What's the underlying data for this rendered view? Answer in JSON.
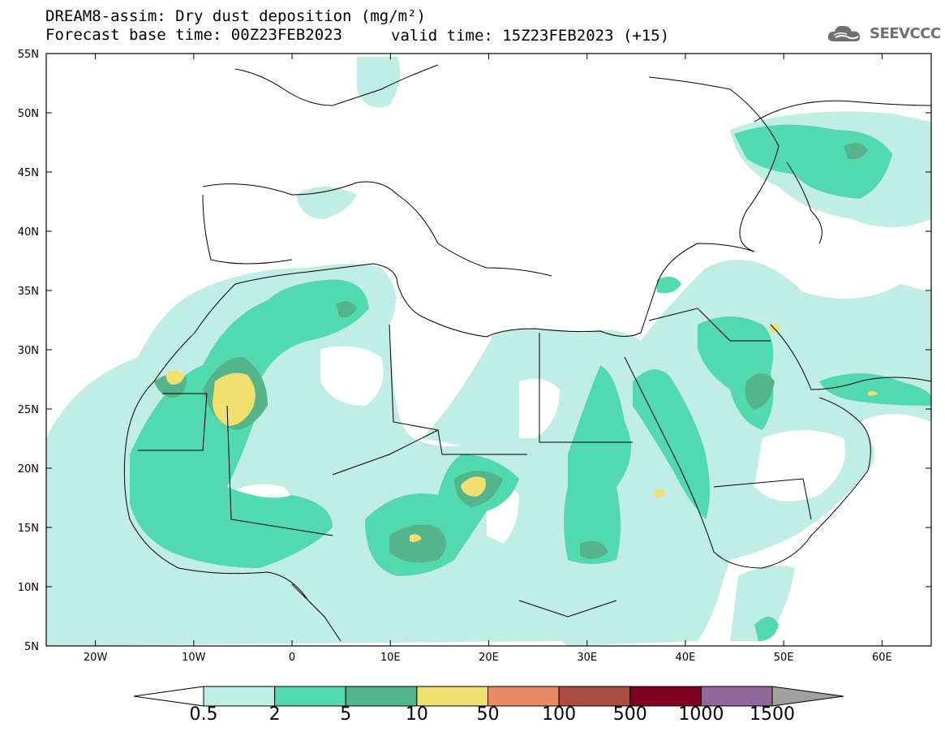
{
  "title": {
    "line1": "DREAM8-assim: Dry dust deposition (mg/m²)",
    "line2_left": "Forecast base time: 00Z23FEB2023",
    "line2_right": "valid time: 15Z23FEB2023 (+15)"
  },
  "logo": {
    "icon": "cloud-icon",
    "text": "SEEVCCC"
  },
  "axes": {
    "lat_labels": [
      "55N",
      "50N",
      "45N",
      "40N",
      "35N",
      "30N",
      "25N",
      "20N",
      "15N",
      "10N",
      "5N"
    ],
    "lon_labels": [
      "20W",
      "10W",
      "0",
      "10E",
      "20E",
      "30E",
      "40E",
      "50E",
      "60E"
    ]
  },
  "colorbar": {
    "labels": [
      "0.5",
      "2",
      "5",
      "10",
      "50",
      "100",
      "500",
      "1000",
      "1500"
    ],
    "colors": [
      "#c0ede4",
      "#52d9ae",
      "#54b48c",
      "#f0e070",
      "#e88a64",
      "#aa4c42",
      "#800020",
      "#90689c",
      "#a0a0a0"
    ]
  },
  "map_colors": {
    "level1": "#c0ede4",
    "level2": "#52d9ae",
    "level3": "#54b48c",
    "level4": "#f0e070"
  }
}
